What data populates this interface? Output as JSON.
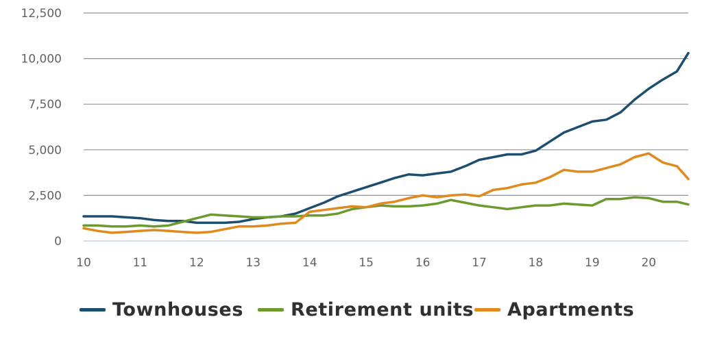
{
  "chart_data": {
    "type": "line",
    "title": "",
    "xlabel": "",
    "ylabel": "",
    "xlim": [
      10,
      20.7
    ],
    "ylim": [
      0,
      12500
    ],
    "x_ticks": [
      "10",
      "11",
      "12",
      "13",
      "14",
      "15",
      "16",
      "17",
      "18",
      "19",
      "20"
    ],
    "y_ticks": [
      "0",
      "2,500",
      "5,000",
      "7,500",
      "10,000",
      "12,500"
    ],
    "grid": "horizontal",
    "legend_position": "bottom",
    "series": [
      {
        "name": "Townhouses",
        "color": "#1c4e6f",
        "x": [
          10,
          10.25,
          10.5,
          10.75,
          11,
          11.25,
          11.5,
          11.75,
          12,
          12.25,
          12.5,
          12.75,
          13,
          13.25,
          13.5,
          13.75,
          14,
          14.25,
          14.5,
          14.75,
          15,
          15.25,
          15.5,
          15.75,
          16,
          16.25,
          16.5,
          16.75,
          17,
          17.25,
          17.5,
          17.75,
          18,
          18.25,
          18.5,
          18.75,
          19,
          19.25,
          19.5,
          19.75,
          20,
          20.25,
          20.5,
          20.7
        ],
        "values": [
          1350,
          1350,
          1350,
          1300,
          1250,
          1150,
          1100,
          1100,
          1000,
          1000,
          1000,
          1050,
          1200,
          1300,
          1350,
          1500,
          1800,
          2100,
          2450,
          2700,
          2950,
          3200,
          3450,
          3650,
          3600,
          3700,
          3800,
          4100,
          4450,
          4600,
          4750,
          4750,
          4950,
          5450,
          5950,
          6250,
          6550,
          6650,
          7050,
          7750,
          8350,
          8850,
          9300,
          10300
        ]
      },
      {
        "name": "Retirement units",
        "color": "#6c9a2f",
        "x": [
          10,
          10.25,
          10.5,
          10.75,
          11,
          11.25,
          11.5,
          11.75,
          12,
          12.25,
          12.5,
          12.75,
          13,
          13.25,
          13.5,
          13.75,
          14,
          14.25,
          14.5,
          14.75,
          15,
          15.25,
          15.5,
          15.75,
          16,
          16.25,
          16.5,
          16.75,
          17,
          17.25,
          17.5,
          17.75,
          18,
          18.25,
          18.5,
          18.75,
          19,
          19.25,
          19.5,
          19.75,
          20,
          20.25,
          20.5,
          20.7
        ],
        "values": [
          850,
          850,
          800,
          800,
          850,
          800,
          850,
          1050,
          1250,
          1450,
          1400,
          1350,
          1300,
          1300,
          1350,
          1350,
          1400,
          1400,
          1500,
          1750,
          1850,
          1950,
          1900,
          1900,
          1950,
          2050,
          2250,
          2100,
          1950,
          1850,
          1750,
          1850,
          1950,
          1950,
          2050,
          2000,
          1950,
          2300,
          2300,
          2400,
          2350,
          2150,
          2150,
          2000
        ]
      },
      {
        "name": "Apartments",
        "color": "#e08a1e",
        "x": [
          10,
          10.25,
          10.5,
          10.75,
          11,
          11.25,
          11.5,
          11.75,
          12,
          12.25,
          12.5,
          12.75,
          13,
          13.25,
          13.5,
          13.75,
          14,
          14.25,
          14.5,
          14.75,
          15,
          15.25,
          15.5,
          15.75,
          16,
          16.25,
          16.5,
          16.75,
          17,
          17.25,
          17.5,
          17.75,
          18,
          18.25,
          18.5,
          18.75,
          19,
          19.25,
          19.5,
          19.75,
          20,
          20.25,
          20.5,
          20.7
        ],
        "values": [
          700,
          550,
          450,
          500,
          550,
          600,
          550,
          500,
          450,
          500,
          650,
          800,
          800,
          850,
          950,
          1000,
          1600,
          1700,
          1800,
          1900,
          1850,
          2050,
          2150,
          2350,
          2500,
          2400,
          2500,
          2550,
          2450,
          2800,
          2900,
          3100,
          3200,
          3500,
          3900,
          3800,
          3800,
          4000,
          4200,
          4600,
          4800,
          4300,
          4100,
          3400
        ]
      }
    ]
  }
}
